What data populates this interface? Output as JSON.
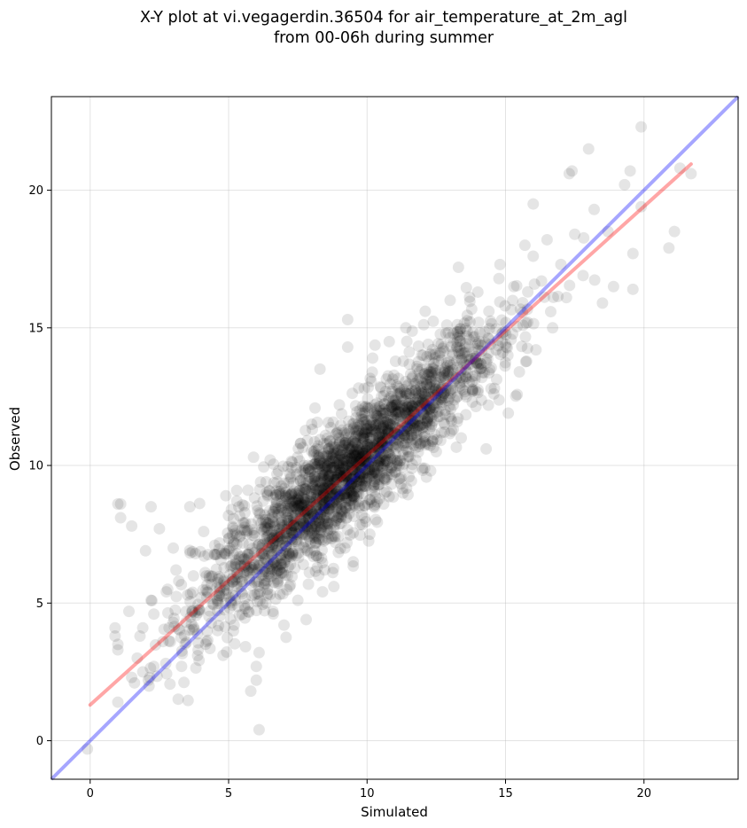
{
  "chart_data": {
    "type": "scatter",
    "title": [
      "X-Y plot at vi.vegagerdin.36504 for air_temperature_at_2m_agl",
      "from 00-06h during summer"
    ],
    "xlabel": "Simulated",
    "ylabel": "Observed",
    "xlim": [
      -1.4,
      23.4
    ],
    "ylim": [
      -1.4,
      23.4
    ],
    "xticks": [
      0,
      5,
      10,
      15,
      20
    ],
    "yticks": [
      0,
      5,
      10,
      15,
      20
    ],
    "grid": true,
    "point_color": "#000000",
    "point_alpha": 0.1,
    "regression_line": {
      "color": "#ff0000",
      "alpha": 0.35,
      "x": [
        0,
        21.7
      ],
      "y": [
        1.3,
        20.95
      ]
    },
    "identity_line": {
      "color": "#0000ff",
      "alpha": 0.35,
      "x": [
        -1.4,
        23.4
      ],
      "y": [
        -1.4,
        23.4
      ]
    },
    "points": [
      [
        -0.1,
        -0.3
      ],
      [
        0.9,
        4.1
      ],
      [
        0.9,
        3.8
      ],
      [
        1.0,
        3.5
      ],
      [
        1.0,
        3.3
      ],
      [
        1.0,
        8.6
      ],
      [
        1.1,
        8.6
      ],
      [
        1.1,
        8.1
      ],
      [
        1.0,
        1.4
      ],
      [
        1.4,
        4.7
      ],
      [
        1.5,
        7.8
      ],
      [
        1.5,
        2.3
      ],
      [
        1.6,
        2.1
      ],
      [
        1.7,
        3.0
      ],
      [
        1.8,
        3.8
      ],
      [
        1.9,
        4.1
      ],
      [
        1.9,
        2.5
      ],
      [
        2.0,
        6.9
      ],
      [
        2.1,
        2.2
      ],
      [
        2.2,
        8.5
      ],
      [
        2.2,
        5.1
      ],
      [
        2.3,
        4.6
      ],
      [
        2.3,
        2.7
      ],
      [
        2.5,
        7.7
      ],
      [
        2.8,
        5.5
      ],
      [
        2.9,
        3.6
      ],
      [
        3.0,
        4.3
      ],
      [
        3.0,
        7.0
      ],
      [
        3.1,
        6.2
      ],
      [
        3.2,
        5.8
      ],
      [
        3.3,
        2.7
      ],
      [
        3.6,
        8.5
      ],
      [
        3.7,
        4.7
      ],
      [
        3.8,
        6.8
      ],
      [
        3.9,
        3.3
      ],
      [
        4.0,
        5.2
      ],
      [
        4.1,
        7.6
      ],
      [
        4.2,
        3.6
      ],
      [
        4.3,
        6.0
      ],
      [
        4.5,
        7.1
      ],
      [
        4.6,
        4.0
      ],
      [
        4.7,
        5.9
      ],
      [
        4.8,
        3.1
      ],
      [
        4.9,
        8.9
      ],
      [
        5.0,
        6.9
      ],
      [
        5.1,
        8.4
      ],
      [
        5.2,
        4.2
      ],
      [
        5.4,
        7.4
      ],
      [
        5.5,
        5.8
      ],
      [
        5.6,
        4.8
      ],
      [
        5.7,
        9.1
      ],
      [
        5.8,
        6.3
      ],
      [
        5.8,
        1.8
      ],
      [
        5.9,
        10.3
      ],
      [
        6.0,
        2.7
      ],
      [
        6.0,
        2.2
      ],
      [
        6.1,
        0.4
      ],
      [
        6.1,
        3.2
      ],
      [
        6.2,
        7.0
      ],
      [
        6.3,
        8.2
      ],
      [
        6.4,
        5.5
      ],
      [
        6.5,
        10.2
      ],
      [
        6.6,
        4.7
      ],
      [
        6.8,
        9.8
      ],
      [
        6.9,
        6.1
      ],
      [
        7.0,
        4.2
      ],
      [
        7.1,
        7.7
      ],
      [
        7.2,
        5.6
      ],
      [
        7.3,
        9.0
      ],
      [
        7.5,
        5.1
      ],
      [
        7.6,
        10.8
      ],
      [
        7.7,
        6.4
      ],
      [
        7.8,
        4.4
      ],
      [
        7.9,
        8.1
      ],
      [
        8.0,
        11.5
      ],
      [
        8.1,
        6.9
      ],
      [
        8.2,
        9.6
      ],
      [
        8.3,
        13.5
      ],
      [
        8.5,
        7.3
      ],
      [
        8.6,
        10.5
      ],
      [
        8.8,
        5.6
      ],
      [
        8.9,
        8.8
      ],
      [
        9.0,
        12.2
      ],
      [
        9.2,
        7.0
      ],
      [
        9.3,
        15.3
      ],
      [
        9.3,
        14.3
      ],
      [
        9.4,
        9.9
      ],
      [
        9.5,
        6.5
      ],
      [
        9.6,
        11.3
      ],
      [
        9.8,
        8.2
      ],
      [
        9.9,
        12.8
      ],
      [
        10.0,
        10.6
      ],
      [
        10.1,
        7.5
      ],
      [
        10.2,
        13.9
      ],
      [
        10.4,
        9.3
      ],
      [
        10.5,
        11.7
      ],
      [
        10.6,
        8.6
      ],
      [
        10.8,
        14.5
      ],
      [
        11.0,
        10.2
      ],
      [
        11.1,
        12.6
      ],
      [
        11.3,
        9.0
      ],
      [
        11.4,
        15.0
      ],
      [
        11.6,
        11.1
      ],
      [
        11.8,
        13.6
      ],
      [
        12.0,
        9.9
      ],
      [
        12.1,
        15.6
      ],
      [
        12.3,
        12.1
      ],
      [
        12.5,
        10.5
      ],
      [
        12.6,
        14.0
      ],
      [
        12.8,
        11.5
      ],
      [
        13.0,
        16.0
      ],
      [
        13.1,
        13.0
      ],
      [
        13.3,
        17.2
      ],
      [
        13.4,
        11.0
      ],
      [
        13.6,
        14.7
      ],
      [
        13.8,
        12.3
      ],
      [
        14.0,
        16.3
      ],
      [
        14.1,
        13.7
      ],
      [
        14.3,
        10.6
      ],
      [
        14.4,
        15.6
      ],
      [
        14.6,
        12.8
      ],
      [
        14.8,
        17.3
      ],
      [
        15.0,
        14.4
      ],
      [
        15.1,
        11.9
      ],
      [
        15.3,
        16.5
      ],
      [
        15.5,
        13.4
      ],
      [
        15.7,
        18.0
      ],
      [
        15.8,
        15.2
      ],
      [
        16.0,
        19.5
      ],
      [
        16.1,
        14.2
      ],
      [
        16.3,
        16.7
      ],
      [
        16.5,
        18.2
      ],
      [
        16.7,
        15.0
      ],
      [
        17.0,
        17.3
      ],
      [
        17.2,
        16.1
      ],
      [
        17.3,
        20.6
      ],
      [
        17.4,
        20.7
      ],
      [
        17.5,
        18.4
      ],
      [
        17.8,
        16.9
      ],
      [
        18.0,
        21.5
      ],
      [
        18.2,
        19.3
      ],
      [
        18.5,
        15.9
      ],
      [
        18.7,
        18.5
      ],
      [
        18.9,
        16.5
      ],
      [
        19.3,
        20.2
      ],
      [
        19.5,
        20.7
      ],
      [
        19.6,
        17.7
      ],
      [
        19.6,
        16.4
      ],
      [
        19.9,
        22.3
      ],
      [
        19.9,
        19.4
      ],
      [
        20.9,
        17.9
      ],
      [
        21.1,
        18.5
      ],
      [
        21.3,
        20.8
      ],
      [
        21.7,
        20.6
      ]
    ]
  }
}
